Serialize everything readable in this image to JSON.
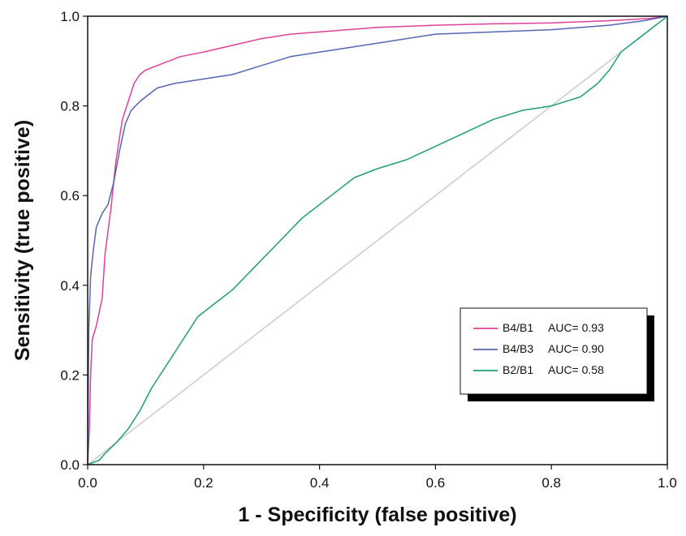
{
  "chart_data": {
    "type": "line",
    "title": "",
    "xlabel": "1 - Specificity (false positive)",
    "ylabel": "Sensitivity (true positive)",
    "xlim": [
      0.0,
      1.0
    ],
    "ylim": [
      0.0,
      1.0
    ],
    "x_ticks": [
      "0.0",
      "0.2",
      "0.4",
      "0.6",
      "0.8",
      "1.0"
    ],
    "y_ticks": [
      "0.0",
      "0.2",
      "0.4",
      "0.6",
      "0.8",
      "1.0"
    ],
    "grid": false,
    "legend_position": "bottom-right",
    "reference_line": {
      "points": [
        [
          0,
          0
        ],
        [
          1,
          1
        ]
      ],
      "color": "#c8c8c8"
    },
    "series": [
      {
        "label": "B4/B1",
        "auc": "AUC= 0.93",
        "color": "#e0409a",
        "points": [
          [
            0,
            0
          ],
          [
            0.003,
            0.08
          ],
          [
            0.005,
            0.2
          ],
          [
            0.008,
            0.28
          ],
          [
            0.015,
            0.31
          ],
          [
            0.025,
            0.37
          ],
          [
            0.03,
            0.47
          ],
          [
            0.04,
            0.57
          ],
          [
            0.048,
            0.67
          ],
          [
            0.055,
            0.73
          ],
          [
            0.06,
            0.77
          ],
          [
            0.07,
            0.81
          ],
          [
            0.08,
            0.85
          ],
          [
            0.09,
            0.87
          ],
          [
            0.1,
            0.88
          ],
          [
            0.12,
            0.89
          ],
          [
            0.14,
            0.9
          ],
          [
            0.16,
            0.91
          ],
          [
            0.2,
            0.92
          ],
          [
            0.25,
            0.935
          ],
          [
            0.3,
            0.95
          ],
          [
            0.35,
            0.96
          ],
          [
            0.4,
            0.965
          ],
          [
            0.5,
            0.975
          ],
          [
            0.6,
            0.98
          ],
          [
            0.7,
            0.983
          ],
          [
            0.8,
            0.985
          ],
          [
            0.9,
            0.99
          ],
          [
            0.97,
            0.995
          ],
          [
            1,
            1
          ]
        ]
      },
      {
        "label": "B4/B3",
        "auc": "AUC= 0.90",
        "color": "#5566b3",
        "points": [
          [
            0,
            0
          ],
          [
            0.002,
            0.3
          ],
          [
            0.005,
            0.42
          ],
          [
            0.01,
            0.48
          ],
          [
            0.015,
            0.53
          ],
          [
            0.025,
            0.56
          ],
          [
            0.035,
            0.58
          ],
          [
            0.045,
            0.63
          ],
          [
            0.055,
            0.7
          ],
          [
            0.065,
            0.76
          ],
          [
            0.075,
            0.79
          ],
          [
            0.09,
            0.81
          ],
          [
            0.1,
            0.82
          ],
          [
            0.12,
            0.84
          ],
          [
            0.15,
            0.85
          ],
          [
            0.2,
            0.86
          ],
          [
            0.25,
            0.87
          ],
          [
            0.3,
            0.89
          ],
          [
            0.35,
            0.91
          ],
          [
            0.4,
            0.92
          ],
          [
            0.5,
            0.94
          ],
          [
            0.6,
            0.96
          ],
          [
            0.7,
            0.965
          ],
          [
            0.8,
            0.97
          ],
          [
            0.9,
            0.98
          ],
          [
            0.96,
            0.99
          ],
          [
            1,
            1
          ]
        ]
      },
      {
        "label": "B2/B1",
        "auc": "AUC= 0.58",
        "color": "#1f9e77",
        "points": [
          [
            0,
            0
          ],
          [
            0.01,
            0.005
          ],
          [
            0.02,
            0.01
          ],
          [
            0.03,
            0.025
          ],
          [
            0.05,
            0.05
          ],
          [
            0.07,
            0.08
          ],
          [
            0.09,
            0.12
          ],
          [
            0.11,
            0.17
          ],
          [
            0.13,
            0.21
          ],
          [
            0.15,
            0.25
          ],
          [
            0.17,
            0.29
          ],
          [
            0.19,
            0.33
          ],
          [
            0.22,
            0.36
          ],
          [
            0.25,
            0.39
          ],
          [
            0.28,
            0.43
          ],
          [
            0.31,
            0.47
          ],
          [
            0.34,
            0.51
          ],
          [
            0.37,
            0.55
          ],
          [
            0.4,
            0.58
          ],
          [
            0.43,
            0.61
          ],
          [
            0.46,
            0.64
          ],
          [
            0.5,
            0.66
          ],
          [
            0.55,
            0.68
          ],
          [
            0.6,
            0.71
          ],
          [
            0.65,
            0.74
          ],
          [
            0.7,
            0.77
          ],
          [
            0.75,
            0.79
          ],
          [
            0.8,
            0.8
          ],
          [
            0.85,
            0.82
          ],
          [
            0.88,
            0.85
          ],
          [
            0.9,
            0.88
          ],
          [
            0.92,
            0.92
          ],
          [
            0.95,
            0.95
          ],
          [
            0.98,
            0.98
          ],
          [
            1,
            1
          ]
        ]
      }
    ]
  }
}
